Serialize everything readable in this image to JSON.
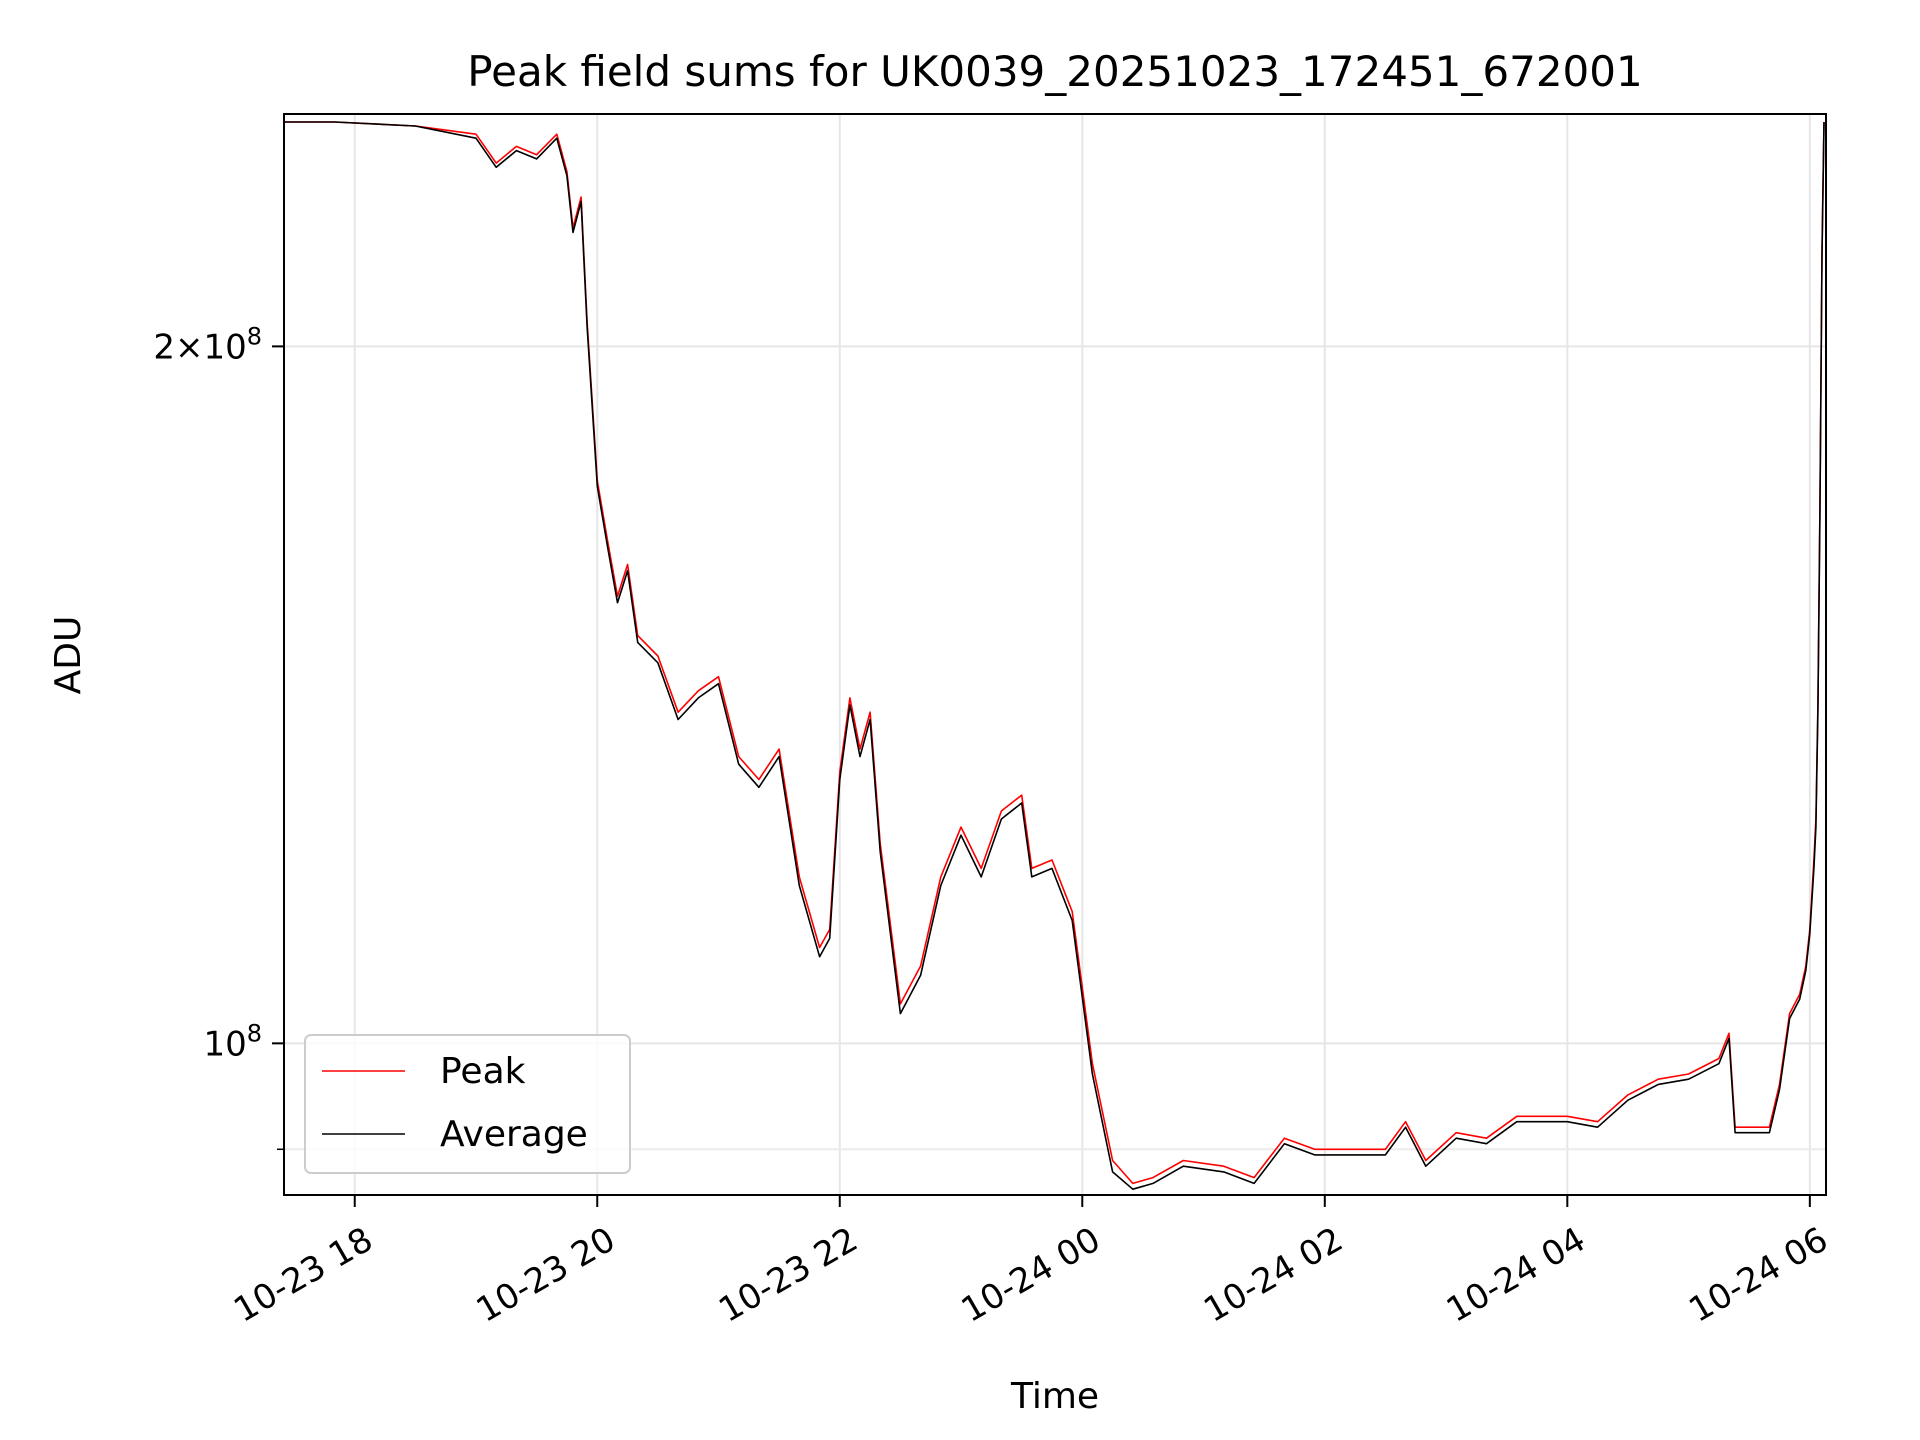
{
  "chart_data": {
    "type": "line",
    "title": "Peak field sums for UK0039_20251023_172451_672001",
    "xlabel": "Time",
    "ylabel": "ADU",
    "y_scale": "log",
    "xlim": [
      "2025-10-23 17:25",
      "2025-10-24 06:08"
    ],
    "ylim": [
      86000000.0,
      252000000.0
    ],
    "grid": true,
    "legend_position": "lower-left",
    "x_ticks": [
      {
        "label": "10-23 18",
        "time": "2025-10-23 18:00"
      },
      {
        "label": "10-23 20",
        "time": "2025-10-23 20:00"
      },
      {
        "label": "10-23 22",
        "time": "2025-10-23 22:00"
      },
      {
        "label": "10-24 00",
        "time": "2025-10-24 00:00"
      },
      {
        "label": "10-24 02",
        "time": "2025-10-24 02:00"
      },
      {
        "label": "10-24 04",
        "time": "2025-10-24 04:00"
      },
      {
        "label": "10-24 06",
        "time": "2025-10-24 06:00"
      }
    ],
    "y_ticks_major": [
      {
        "mantissa": "2",
        "exponent": "8",
        "value": 200000000
      },
      {
        "mantissa": "",
        "exponent": "8",
        "value": 100000000
      }
    ],
    "y_ticks_minor": [
      90000000
    ],
    "series": [
      {
        "name": "Peak",
        "color": "#ff0000",
        "points": [
          [
            "2025-10-23 17:25",
            250000000.0
          ],
          [
            "2025-10-23 17:50",
            250000000.0
          ],
          [
            "2025-10-23 18:30",
            249000000.0
          ],
          [
            "2025-10-23 19:00",
            247000000.0
          ],
          [
            "2025-10-23 19:10",
            240000000.0
          ],
          [
            "2025-10-23 19:20",
            244000000.0
          ],
          [
            "2025-10-23 19:30",
            242000000.0
          ],
          [
            "2025-10-23 19:40",
            247000000.0
          ],
          [
            "2025-10-23 19:45",
            238000000.0
          ],
          [
            "2025-10-23 19:48",
            225000000.0
          ],
          [
            "2025-10-23 19:52",
            232000000.0
          ],
          [
            "2025-10-23 19:55",
            205000000.0
          ],
          [
            "2025-10-23 20:00",
            175000000.0
          ],
          [
            "2025-10-23 20:05",
            165000000.0
          ],
          [
            "2025-10-23 20:10",
            156000000.0
          ],
          [
            "2025-10-23 20:15",
            161000000.0
          ],
          [
            "2025-10-23 20:20",
            150000000.0
          ],
          [
            "2025-10-23 20:30",
            147000000.0
          ],
          [
            "2025-10-23 20:40",
            139000000.0
          ],
          [
            "2025-10-23 20:50",
            142000000.0
          ],
          [
            "2025-10-23 21:00",
            144000000.0
          ],
          [
            "2025-10-23 21:10",
            133000000.0
          ],
          [
            "2025-10-23 21:20",
            130000000.0
          ],
          [
            "2025-10-23 21:30",
            134000000.0
          ],
          [
            "2025-10-23 21:40",
            118000000.0
          ],
          [
            "2025-10-23 21:50",
            110000000.0
          ],
          [
            "2025-10-23 21:55",
            112000000.0
          ],
          [
            "2025-10-23 22:00",
            131000000.0
          ],
          [
            "2025-10-23 22:05",
            141000000.0
          ],
          [
            "2025-10-23 22:10",
            134000000.0
          ],
          [
            "2025-10-23 22:15",
            139000000.0
          ],
          [
            "2025-10-23 22:20",
            122000000.0
          ],
          [
            "2025-10-23 22:30",
            104000000.0
          ],
          [
            "2025-10-23 22:40",
            108000000.0
          ],
          [
            "2025-10-23 22:50",
            118000000.0
          ],
          [
            "2025-10-23 23:00",
            124000000.0
          ],
          [
            "2025-10-23 23:10",
            119000000.0
          ],
          [
            "2025-10-23 23:20",
            126000000.0
          ],
          [
            "2025-10-23 23:30",
            128000000.0
          ],
          [
            "2025-10-23 23:35",
            119000000.0
          ],
          [
            "2025-10-23 23:45",
            120000000.0
          ],
          [
            "2025-10-23 23:55",
            114000000.0
          ],
          [
            "2025-10-24 00:05",
            98000000.0
          ],
          [
            "2025-10-24 00:15",
            89000000.0
          ],
          [
            "2025-10-24 00:25",
            87000000.0
          ],
          [
            "2025-10-24 00:35",
            87500000.0
          ],
          [
            "2025-10-24 00:50",
            89000000.0
          ],
          [
            "2025-10-24 01:10",
            88500000.0
          ],
          [
            "2025-10-24 01:25",
            87500000.0
          ],
          [
            "2025-10-24 01:40",
            91000000.0
          ],
          [
            "2025-10-24 01:55",
            90000000.0
          ],
          [
            "2025-10-24 02:15",
            90000000.0
          ],
          [
            "2025-10-24 02:30",
            90000000.0
          ],
          [
            "2025-10-24 02:40",
            92500000.0
          ],
          [
            "2025-10-24 02:50",
            89000000.0
          ],
          [
            "2025-10-24 03:05",
            91500000.0
          ],
          [
            "2025-10-24 03:20",
            91000000.0
          ],
          [
            "2025-10-24 03:35",
            93000000.0
          ],
          [
            "2025-10-24 03:50",
            93000000.0
          ],
          [
            "2025-10-24 04:00",
            93000000.0
          ],
          [
            "2025-10-24 04:15",
            92500000.0
          ],
          [
            "2025-10-24 04:30",
            95000000.0
          ],
          [
            "2025-10-24 04:45",
            96500000.0
          ],
          [
            "2025-10-24 05:00",
            97000000.0
          ],
          [
            "2025-10-24 05:15",
            98500000.0
          ],
          [
            "2025-10-24 05:20",
            101000000.0
          ],
          [
            "2025-10-24 05:23",
            92000000.0
          ],
          [
            "2025-10-24 05:35",
            92000000.0
          ],
          [
            "2025-10-24 05:40",
            92000000.0
          ],
          [
            "2025-10-24 05:45",
            96000000.0
          ],
          [
            "2025-10-24 05:50",
            103000000.0
          ],
          [
            "2025-10-24 05:55",
            105000000.0
          ],
          [
            "2025-10-24 05:58",
            108000000.0
          ],
          [
            "2025-10-24 06:00",
            112000000.0
          ],
          [
            "2025-10-24 06:02",
            120000000.0
          ],
          [
            "2025-10-24 06:03",
            125000000.0
          ],
          [
            "2025-10-24 06:04",
            140000000.0
          ],
          [
            "2025-10-24 06:05",
            170000000.0
          ],
          [
            "2025-10-24 06:06",
            220000000.0
          ],
          [
            "2025-10-24 06:07",
            250000000.0
          ]
        ]
      },
      {
        "name": "Average",
        "color": "#000000",
        "points": [
          [
            "2025-10-23 17:25",
            250000000.0
          ],
          [
            "2025-10-23 17:50",
            250000000.0
          ],
          [
            "2025-10-23 18:30",
            249000000.0
          ],
          [
            "2025-10-23 19:00",
            246000000.0
          ],
          [
            "2025-10-23 19:10",
            239000000.0
          ],
          [
            "2025-10-23 19:20",
            243000000.0
          ],
          [
            "2025-10-23 19:30",
            241000000.0
          ],
          [
            "2025-10-23 19:40",
            246000000.0
          ],
          [
            "2025-10-23 19:45",
            237000000.0
          ],
          [
            "2025-10-23 19:48",
            224000000.0
          ],
          [
            "2025-10-23 19:52",
            231000000.0
          ],
          [
            "2025-10-23 19:55",
            204000000.0
          ],
          [
            "2025-10-23 20:00",
            174000000.0
          ],
          [
            "2025-10-23 20:05",
            164000000.0
          ],
          [
            "2025-10-23 20:10",
            155000000.0
          ],
          [
            "2025-10-23 20:15",
            160000000.0
          ],
          [
            "2025-10-23 20:20",
            149000000.0
          ],
          [
            "2025-10-23 20:30",
            146000000.0
          ],
          [
            "2025-10-23 20:40",
            138000000.0
          ],
          [
            "2025-10-23 20:50",
            141000000.0
          ],
          [
            "2025-10-23 21:00",
            143000000.0
          ],
          [
            "2025-10-23 21:10",
            132000000.0
          ],
          [
            "2025-10-23 21:20",
            129000000.0
          ],
          [
            "2025-10-23 21:30",
            133000000.0
          ],
          [
            "2025-10-23 21:40",
            117000000.0
          ],
          [
            "2025-10-23 21:50",
            109000000.0
          ],
          [
            "2025-10-23 21:55",
            111000000.0
          ],
          [
            "2025-10-23 22:00",
            130000000.0
          ],
          [
            "2025-10-23 22:05",
            140000000.0
          ],
          [
            "2025-10-23 22:10",
            133000000.0
          ],
          [
            "2025-10-23 22:15",
            138000000.0
          ],
          [
            "2025-10-23 22:20",
            121000000.0
          ],
          [
            "2025-10-23 22:30",
            103000000.0
          ],
          [
            "2025-10-23 22:40",
            107000000.0
          ],
          [
            "2025-10-23 22:50",
            117000000.0
          ],
          [
            "2025-10-23 23:00",
            123000000.0
          ],
          [
            "2025-10-23 23:10",
            118000000.0
          ],
          [
            "2025-10-23 23:20",
            125000000.0
          ],
          [
            "2025-10-23 23:30",
            127000000.0
          ],
          [
            "2025-10-23 23:35",
            118000000.0
          ],
          [
            "2025-10-23 23:45",
            119000000.0
          ],
          [
            "2025-10-23 23:55",
            113000000.0
          ],
          [
            "2025-10-24 00:05",
            97000000.0
          ],
          [
            "2025-10-24 00:15",
            88000000.0
          ],
          [
            "2025-10-24 00:25",
            86500000.0
          ],
          [
            "2025-10-24 00:35",
            87000000.0
          ],
          [
            "2025-10-24 00:50",
            88500000.0
          ],
          [
            "2025-10-24 01:10",
            88000000.0
          ],
          [
            "2025-10-24 01:25",
            87000000.0
          ],
          [
            "2025-10-24 01:40",
            90500000.0
          ],
          [
            "2025-10-24 01:55",
            89500000.0
          ],
          [
            "2025-10-24 02:15",
            89500000.0
          ],
          [
            "2025-10-24 02:30",
            89500000.0
          ],
          [
            "2025-10-24 02:40",
            92000000.0
          ],
          [
            "2025-10-24 02:50",
            88500000.0
          ],
          [
            "2025-10-24 03:05",
            91000000.0
          ],
          [
            "2025-10-24 03:20",
            90500000.0
          ],
          [
            "2025-10-24 03:35",
            92500000.0
          ],
          [
            "2025-10-24 03:50",
            92500000.0
          ],
          [
            "2025-10-24 04:00",
            92500000.0
          ],
          [
            "2025-10-24 04:15",
            92000000.0
          ],
          [
            "2025-10-24 04:30",
            94500000.0
          ],
          [
            "2025-10-24 04:45",
            96000000.0
          ],
          [
            "2025-10-24 05:00",
            96500000.0
          ],
          [
            "2025-10-24 05:15",
            98000000.0
          ],
          [
            "2025-10-24 05:20",
            100500000.0
          ],
          [
            "2025-10-24 05:23",
            91500000.0
          ],
          [
            "2025-10-24 05:35",
            91500000.0
          ],
          [
            "2025-10-24 05:40",
            91500000.0
          ],
          [
            "2025-10-24 05:45",
            95500000.0
          ],
          [
            "2025-10-24 05:50",
            102500000.0
          ],
          [
            "2025-10-24 05:55",
            104500000.0
          ],
          [
            "2025-10-24 05:58",
            107500000.0
          ],
          [
            "2025-10-24 06:00",
            111500000.0
          ],
          [
            "2025-10-24 06:02",
            119000000.0
          ],
          [
            "2025-10-24 06:03",
            124000000.0
          ],
          [
            "2025-10-24 06:04",
            139000000.0
          ],
          [
            "2025-10-24 06:05",
            169000000.0
          ],
          [
            "2025-10-24 06:06",
            219000000.0
          ],
          [
            "2025-10-24 06:07",
            250000000.0
          ]
        ]
      }
    ]
  }
}
